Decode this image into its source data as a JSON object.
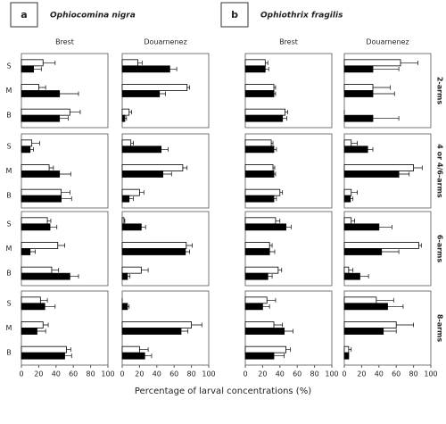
{
  "panels": [
    {
      "letter": "a",
      "species": "Ophiocomina nigra"
    },
    {
      "letter": "b",
      "species": "Ophiothrix fragilis"
    }
  ],
  "row_labels": [
    "2-arms",
    "4 or 4/6-arms",
    "6-arms",
    "8-arms"
  ],
  "xlabel": "Percentage of larval concentrations (%)",
  "chart_data": [
    {
      "type": "barh",
      "title": "Brest",
      "categories": [
        "S",
        "M",
        "B"
      ],
      "xlim": [
        0,
        100
      ],
      "series": [
        {
          "color": "#ffffff",
          "values": [
            25,
            20,
            56
          ],
          "errors": [
            14,
            8,
            12
          ]
        },
        {
          "color": "#000000",
          "values": [
            14,
            44,
            44
          ],
          "errors": [
            9,
            22,
            10
          ]
        }
      ]
    },
    {
      "type": "barh",
      "title": "Douarnenez",
      "categories": [
        null,
        null,
        null
      ],
      "xlim": [
        0,
        100
      ],
      "series": [
        {
          "color": "#ffffff",
          "values": [
            18,
            75,
            8
          ],
          "errors": [
            5,
            3,
            3
          ]
        },
        {
          "color": "#000000",
          "values": [
            55,
            43,
            3
          ],
          "errors": [
            8,
            7,
            2
          ]
        }
      ]
    },
    {
      "type": "barh",
      "title": "Brest",
      "categories": [
        null,
        null,
        null
      ],
      "xlim": [
        0,
        100
      ],
      "series": [
        {
          "color": "#ffffff",
          "values": [
            23,
            33,
            46
          ],
          "errors": [
            3,
            2,
            3
          ]
        },
        {
          "color": "#000000",
          "values": [
            23,
            33,
            43
          ],
          "errors": [
            4,
            2,
            5
          ]
        }
      ]
    },
    {
      "type": "barh",
      "title": "Douarnenez",
      "categories": [
        null,
        null,
        null
      ],
      "xlim": [
        0,
        100
      ],
      "series": [
        {
          "color": "#ffffff",
          "values": [
            65,
            33,
            0
          ],
          "errors": [
            20,
            20,
            0
          ]
        },
        {
          "color": "#000000",
          "values": [
            33,
            33,
            33
          ],
          "errors": [
            30,
            25,
            30
          ]
        }
      ]
    },
    {
      "type": "barh",
      "categories": [
        "S",
        "M",
        "B"
      ],
      "xlim": [
        0,
        100
      ],
      "series": [
        {
          "color": "#ffffff",
          "values": [
            12,
            32,
            46
          ],
          "errors": [
            9,
            5,
            10
          ]
        },
        {
          "color": "#000000",
          "values": [
            10,
            44,
            46
          ],
          "errors": [
            4,
            13,
            12
          ]
        }
      ]
    },
    {
      "type": "barh",
      "categories": [
        null,
        null,
        null
      ],
      "xlim": [
        0,
        100
      ],
      "series": [
        {
          "color": "#ffffff",
          "values": [
            10,
            70,
            20
          ],
          "errors": [
            3,
            5,
            5
          ]
        },
        {
          "color": "#000000",
          "values": [
            45,
            47,
            8
          ],
          "errors": [
            8,
            10,
            5
          ]
        }
      ]
    },
    {
      "type": "barh",
      "categories": [
        null,
        null,
        null
      ],
      "xlim": [
        0,
        100
      ],
      "series": [
        {
          "color": "#ffffff",
          "values": [
            30,
            32,
            40
          ],
          "errors": [
            2,
            2,
            3
          ]
        },
        {
          "color": "#000000",
          "values": [
            33,
            33,
            33
          ],
          "errors": [
            3,
            2,
            3
          ]
        }
      ]
    },
    {
      "type": "barh",
      "categories": [
        null,
        null,
        null
      ],
      "xlim": [
        0,
        100
      ],
      "series": [
        {
          "color": "#ffffff",
          "values": [
            8,
            80,
            8
          ],
          "errors": [
            7,
            10,
            7
          ]
        },
        {
          "color": "#000000",
          "values": [
            27,
            63,
            7
          ],
          "errors": [
            6,
            12,
            3
          ]
        }
      ]
    },
    {
      "type": "barh",
      "categories": [
        "S",
        "M",
        "B"
      ],
      "xlim": [
        0,
        100
      ],
      "series": [
        {
          "color": "#ffffff",
          "values": [
            30,
            42,
            35
          ],
          "errors": [
            4,
            8,
            8
          ]
        },
        {
          "color": "#000000",
          "values": [
            33,
            10,
            56
          ],
          "errors": [
            8,
            6,
            10
          ]
        }
      ]
    },
    {
      "type": "barh",
      "categories": [
        null,
        null,
        null
      ],
      "xlim": [
        0,
        100
      ],
      "series": [
        {
          "color": "#ffffff",
          "values": [
            2,
            74,
            22
          ],
          "errors": [
            1,
            7,
            8
          ]
        },
        {
          "color": "#000000",
          "values": [
            22,
            73,
            6
          ],
          "errors": [
            5,
            5,
            3
          ]
        }
      ]
    },
    {
      "type": "barh",
      "categories": [
        null,
        null,
        null
      ],
      "xlim": [
        0,
        100
      ],
      "series": [
        {
          "color": "#ffffff",
          "values": [
            35,
            28,
            38
          ],
          "errors": [
            5,
            3,
            4
          ]
        },
        {
          "color": "#000000",
          "values": [
            47,
            28,
            26
          ],
          "errors": [
            6,
            6,
            5
          ]
        }
      ]
    },
    {
      "type": "barh",
      "categories": [
        null,
        null,
        null
      ],
      "xlim": [
        0,
        100
      ],
      "series": [
        {
          "color": "#ffffff",
          "values": [
            8,
            86,
            5
          ],
          "errors": [
            4,
            3,
            5
          ]
        },
        {
          "color": "#000000",
          "values": [
            40,
            43,
            18
          ],
          "errors": [
            15,
            20,
            10
          ]
        }
      ]
    },
    {
      "type": "barh",
      "categories": [
        "S",
        "M",
        "B"
      ],
      "xlim": [
        0,
        100
      ],
      "xticks": [
        0,
        20,
        40,
        60,
        80,
        100
      ],
      "series": [
        {
          "color": "#ffffff",
          "values": [
            22,
            25,
            52
          ],
          "errors": [
            8,
            6,
            5
          ]
        },
        {
          "color": "#000000",
          "values": [
            27,
            18,
            50
          ],
          "errors": [
            12,
            10,
            8
          ]
        }
      ]
    },
    {
      "type": "barh",
      "categories": [
        null,
        null,
        null
      ],
      "xlim": [
        0,
        100
      ],
      "xticks": [
        0,
        20,
        40,
        60,
        80,
        100
      ],
      "series": [
        {
          "color": "#ffffff",
          "values": [
            0,
            80,
            20
          ],
          "errors": [
            0,
            12,
            10
          ]
        },
        {
          "color": "#000000",
          "values": [
            6,
            68,
            26
          ],
          "errors": [
            2,
            8,
            8
          ]
        }
      ]
    },
    {
      "type": "barh",
      "categories": [
        null,
        null,
        null
      ],
      "xlim": [
        0,
        100
      ],
      "xticks": [
        0,
        20,
        40,
        60,
        80,
        100
      ],
      "series": [
        {
          "color": "#ffffff",
          "values": [
            25,
            33,
            47
          ],
          "errors": [
            10,
            10,
            5
          ]
        },
        {
          "color": "#000000",
          "values": [
            20,
            45,
            33
          ],
          "errors": [
            8,
            10,
            12
          ]
        }
      ]
    },
    {
      "type": "barh",
      "categories": [
        null,
        null,
        null
      ],
      "xlim": [
        0,
        100
      ],
      "xticks": [
        0,
        20,
        40,
        60,
        80,
        100
      ],
      "series": [
        {
          "color": "#ffffff",
          "values": [
            37,
            60,
            5
          ],
          "errors": [
            20,
            20,
            3
          ]
        },
        {
          "color": "#000000",
          "values": [
            50,
            45,
            5
          ],
          "errors": [
            18,
            15,
            0
          ]
        }
      ]
    }
  ]
}
